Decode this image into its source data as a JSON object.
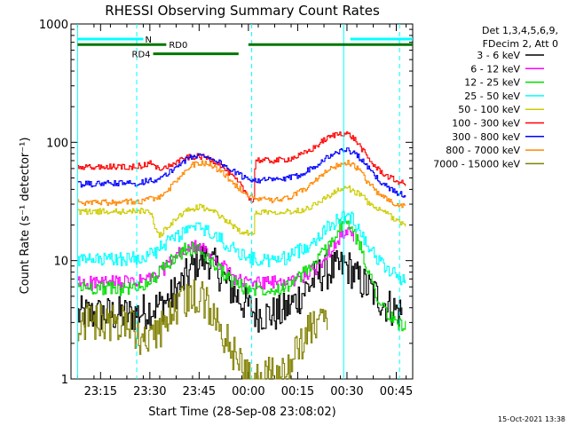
{
  "chart_data": {
    "type": "line",
    "title": "RHESSI Observing Summary Count Rates",
    "xlabel": "Start Time (28-Sep-08 23:08:02)",
    "ylabel": "Count Rate (s⁻¹ detector⁻¹)",
    "yscale": "log",
    "ylim": [
      1,
      1000
    ],
    "xlim_minutes": [
      -2,
      102
    ],
    "x_ticks": [
      {
        "m": 7,
        "label": "23:15"
      },
      {
        "m": 22,
        "label": "23:30"
      },
      {
        "m": 37,
        "label": "23:45"
      },
      {
        "m": 52,
        "label": "00:00"
      },
      {
        "m": 67,
        "label": "00:15"
      },
      {
        "m": 82,
        "label": "00:30"
      },
      {
        "m": 97,
        "label": "00:45"
      }
    ],
    "y_ticks": [
      {
        "v": 1,
        "label": "1"
      },
      {
        "v": 10,
        "label": "10"
      },
      {
        "v": 100,
        "label": "100"
      },
      {
        "v": 1000,
        "label": "1000"
      }
    ],
    "legend_header": [
      "Det 1,3,4,5,6,9,",
      "FDecim 2, Att 0"
    ],
    "legend_position": "right",
    "series": [
      {
        "name": "3 - 6 keV",
        "color": "#000000",
        "points": [
          [
            0,
            3.5
          ],
          [
            17,
            3.5
          ],
          [
            21,
            3.8
          ],
          [
            25,
            4.2
          ],
          [
            28,
            4.8
          ],
          [
            31,
            6
          ],
          [
            34,
            8
          ],
          [
            37,
            10.5
          ],
          [
            40,
            10
          ],
          [
            43,
            8
          ],
          [
            46,
            6
          ],
          [
            50,
            4.5
          ],
          [
            54,
            3.6
          ],
          [
            58,
            3.5
          ],
          [
            62,
            3.6
          ],
          [
            66,
            4.5
          ],
          [
            70,
            6
          ],
          [
            73,
            7.5
          ],
          [
            75,
            8
          ],
          [
            79,
            8.5
          ],
          [
            81,
            9
          ],
          [
            83,
            8.5
          ],
          [
            85,
            7
          ],
          [
            88,
            6
          ],
          [
            91,
            5
          ],
          [
            94,
            4.2
          ],
          [
            97,
            3.8
          ],
          [
            99,
            3.6
          ]
        ]
      },
      {
        "name": "6 - 12 keV",
        "color": "#ff00ff",
        "points": [
          [
            0,
            6.5
          ],
          [
            10,
            6.5
          ],
          [
            17,
            6.5
          ],
          [
            21,
            7
          ],
          [
            24,
            7.5
          ],
          [
            27,
            9
          ],
          [
            30,
            11
          ],
          [
            33,
            12.5
          ],
          [
            36,
            13
          ],
          [
            39,
            12
          ],
          [
            42,
            10
          ],
          [
            45,
            8.5
          ],
          [
            48,
            7
          ],
          [
            51,
            6.5
          ],
          [
            55,
            6.5
          ],
          [
            59,
            6.5
          ],
          [
            63,
            6.5
          ],
          [
            67,
            7
          ],
          [
            71,
            8
          ],
          [
            74,
            9.5
          ],
          [
            76,
            11.5
          ],
          [
            78,
            14
          ],
          [
            80,
            16
          ],
          [
            82,
            17
          ],
          [
            83,
            16.5
          ],
          [
            84,
            15
          ]
        ]
      },
      {
        "name": "12 - 25 keV",
        "color": "#00dd00",
        "points": [
          [
            0,
            6
          ],
          [
            10,
            5.8
          ],
          [
            17,
            5.8
          ],
          [
            21,
            6.5
          ],
          [
            24,
            7.5
          ],
          [
            27,
            9
          ],
          [
            30,
            11
          ],
          [
            33,
            12.5
          ],
          [
            36,
            12.5
          ],
          [
            39,
            11
          ],
          [
            42,
            9
          ],
          [
            45,
            7.5
          ],
          [
            48,
            6.5
          ],
          [
            51,
            5.8
          ],
          [
            55,
            5.8
          ],
          [
            59,
            5.8
          ],
          [
            63,
            6
          ],
          [
            67,
            7
          ],
          [
            71,
            9
          ],
          [
            74,
            11
          ],
          [
            76,
            13
          ],
          [
            78,
            16
          ],
          [
            79.5,
            19
          ],
          [
            81,
            21
          ],
          [
            82.5,
            20
          ],
          [
            84,
            17
          ],
          [
            86,
            13
          ],
          [
            88,
            9
          ],
          [
            90,
            6
          ],
          [
            92,
            4.5
          ],
          [
            94,
            3.5
          ],
          [
            97,
            3
          ],
          [
            100,
            2.8
          ]
        ]
      },
      {
        "name": "25 - 50 keV",
        "color": "#00ffff",
        "points": [
          [
            0,
            10
          ],
          [
            10,
            10.2
          ],
          [
            17,
            10.5
          ],
          [
            21,
            11
          ],
          [
            24,
            12
          ],
          [
            27,
            14
          ],
          [
            30,
            16
          ],
          [
            33,
            18
          ],
          [
            36,
            19
          ],
          [
            39,
            18
          ],
          [
            42,
            16
          ],
          [
            45,
            14
          ],
          [
            48,
            12
          ],
          [
            51,
            11
          ],
          [
            55,
            10
          ],
          [
            59,
            10
          ],
          [
            63,
            10.5
          ],
          [
            67,
            12
          ],
          [
            71,
            14
          ],
          [
            74,
            17
          ],
          [
            77,
            20
          ],
          [
            80,
            23
          ],
          [
            82,
            24
          ],
          [
            84,
            22
          ],
          [
            86,
            18
          ],
          [
            88,
            14
          ],
          [
            91,
            10.5
          ],
          [
            94,
            8.5
          ],
          [
            97,
            7.5
          ],
          [
            100,
            6.8
          ]
        ]
      },
      {
        "name": "50 - 100 keV",
        "color": "#cccc00",
        "points": [
          [
            0,
            26
          ],
          [
            10,
            26
          ],
          [
            17,
            26
          ],
          [
            20,
            26.5
          ],
          [
            22,
            26
          ],
          [
            24,
            17
          ],
          [
            25,
            16.5
          ],
          [
            28,
            20
          ],
          [
            31,
            24
          ],
          [
            34,
            27
          ],
          [
            37,
            28.5
          ],
          [
            40,
            27
          ],
          [
            43,
            24
          ],
          [
            46,
            21
          ],
          [
            49,
            18
          ],
          [
            52,
            17
          ],
          [
            53.5,
            16.5
          ],
          [
            54,
            26
          ],
          [
            57,
            26
          ],
          [
            61,
            26
          ],
          [
            65,
            26
          ],
          [
            69,
            27
          ],
          [
            73,
            31
          ],
          [
            77,
            36
          ],
          [
            80,
            40
          ],
          [
            82,
            41
          ],
          [
            84,
            39
          ],
          [
            87,
            34
          ],
          [
            90,
            28
          ],
          [
            94,
            25
          ],
          [
            97,
            22
          ],
          [
            100,
            20
          ]
        ]
      },
      {
        "name": "100 - 300 keV",
        "color": "#ff0000",
        "points": [
          [
            0,
            61
          ],
          [
            10,
            62
          ],
          [
            17,
            62
          ],
          [
            20,
            64
          ],
          [
            22,
            66
          ],
          [
            23,
            70
          ],
          [
            23.5,
            61
          ],
          [
            26,
            60
          ],
          [
            28,
            63
          ],
          [
            31,
            70
          ],
          [
            34,
            75
          ],
          [
            37,
            76
          ],
          [
            40,
            73
          ],
          [
            43,
            66
          ],
          [
            46,
            55
          ],
          [
            49,
            45
          ],
          [
            51,
            38
          ],
          [
            53,
            32
          ],
          [
            53.5,
            30
          ],
          [
            54,
            72
          ],
          [
            56,
            70
          ],
          [
            60,
            70
          ],
          [
            64,
            72
          ],
          [
            68,
            78
          ],
          [
            72,
            90
          ],
          [
            75,
            105
          ],
          [
            78,
            115
          ],
          [
            80,
            120
          ],
          [
            82,
            118
          ],
          [
            84,
            108
          ],
          [
            86,
            92
          ],
          [
            88,
            75
          ],
          [
            91,
            60
          ],
          [
            94,
            52
          ],
          [
            97,
            47
          ],
          [
            100,
            44
          ]
        ]
      },
      {
        "name": "300 - 800 keV",
        "color": "#0000ff",
        "points": [
          [
            0,
            44
          ],
          [
            10,
            45
          ],
          [
            17,
            45
          ],
          [
            20,
            46
          ],
          [
            22,
            49
          ],
          [
            24,
            47
          ],
          [
            26,
            51
          ],
          [
            28,
            56
          ],
          [
            31,
            66
          ],
          [
            34,
            74
          ],
          [
            37,
            78
          ],
          [
            40,
            75
          ],
          [
            43,
            68
          ],
          [
            46,
            60
          ],
          [
            49,
            53
          ],
          [
            52,
            49
          ],
          [
            55,
            48
          ],
          [
            59,
            48
          ],
          [
            63,
            49
          ],
          [
            66,
            51
          ],
          [
            69,
            56
          ],
          [
            72,
            63
          ],
          [
            75,
            72
          ],
          [
            78,
            80
          ],
          [
            80,
            85
          ],
          [
            82,
            86
          ],
          [
            84,
            82
          ],
          [
            86,
            73
          ],
          [
            88,
            62
          ],
          [
            91,
            50
          ],
          [
            94,
            42
          ],
          [
            97,
            38
          ],
          [
            100,
            35
          ]
        ]
      },
      {
        "name": "800 - 7000 keV",
        "color": "#ff8800",
        "points": [
          [
            0,
            31
          ],
          [
            10,
            31
          ],
          [
            17,
            31.5
          ],
          [
            20,
            32
          ],
          [
            22,
            34
          ],
          [
            24,
            33
          ],
          [
            26,
            36
          ],
          [
            28,
            41
          ],
          [
            31,
            51
          ],
          [
            34,
            63
          ],
          [
            37,
            68
          ],
          [
            40,
            65
          ],
          [
            43,
            58
          ],
          [
            46,
            49
          ],
          [
            49,
            41
          ],
          [
            52,
            36
          ],
          [
            55,
            33
          ],
          [
            59,
            32
          ],
          [
            63,
            33
          ],
          [
            66,
            36
          ],
          [
            69,
            40
          ],
          [
            72,
            47
          ],
          [
            75,
            55
          ],
          [
            78,
            62
          ],
          [
            80,
            66
          ],
          [
            82,
            67
          ],
          [
            84,
            64
          ],
          [
            86,
            56
          ],
          [
            88,
            47
          ],
          [
            91,
            38
          ],
          [
            94,
            33
          ],
          [
            97,
            30
          ],
          [
            100,
            28
          ]
        ]
      },
      {
        "name": "7000 - 15000 keV",
        "color": "#808000",
        "points": [
          [
            0,
            3
          ],
          [
            10,
            3
          ],
          [
            16,
            2.8
          ],
          [
            19,
            2.2
          ],
          [
            21,
            1.8
          ],
          [
            24,
            2.3
          ],
          [
            27,
            3
          ],
          [
            30,
            4
          ],
          [
            33,
            4.5
          ],
          [
            36,
            5
          ],
          [
            38,
            4.8
          ],
          [
            40,
            4
          ],
          [
            42,
            3
          ],
          [
            44,
            2.5
          ],
          [
            46,
            2
          ],
          [
            48,
            1.5
          ],
          [
            51,
            1.1
          ],
          [
            63,
            1.1
          ],
          [
            66,
            1.6
          ],
          [
            69,
            2.3
          ],
          [
            72,
            3
          ],
          [
            74,
            3.2
          ],
          [
            76,
            3
          ]
        ]
      }
    ],
    "annotations": {
      "bars": [
        {
          "label": "N",
          "color": "#00ffff",
          "segments": [
            [
              0,
              20
            ],
            [
              83,
              102
            ]
          ],
          "level": 745
        },
        {
          "label": "RD0",
          "color": "#007700",
          "segments": [
            [
              0,
              27
            ],
            [
              52,
              102
            ]
          ],
          "level": 670
        },
        {
          "label": "RD4",
          "color": "#007700",
          "segments": [
            [
              23,
              49
            ]
          ],
          "level": 560
        }
      ],
      "vlines_solid": [
        {
          "m": 0,
          "color": "#00ffff"
        },
        {
          "m": 81,
          "color": "#00ffff"
        }
      ],
      "vlines_dashed": [
        {
          "m": 18,
          "color": "#00ffff"
        },
        {
          "m": 53,
          "color": "#00ffff"
        },
        {
          "m": 98,
          "color": "#00ffff"
        }
      ]
    },
    "footer_timestamp": "15-Oct-2021 13:38"
  }
}
